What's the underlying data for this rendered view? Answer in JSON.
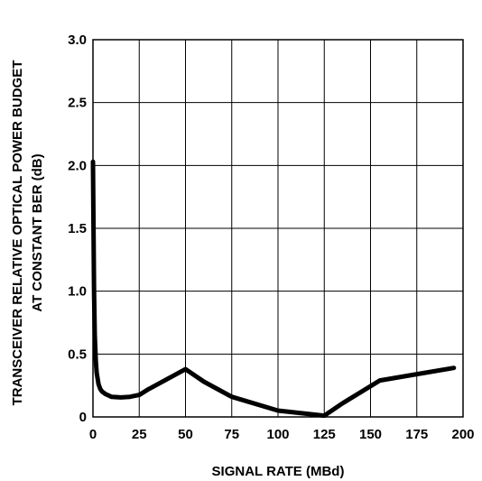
{
  "chart_data": {
    "type": "line",
    "title": "",
    "xlabel": "SIGNAL RATE (MBd)",
    "ylabel_lines": [
      "TRANSCEIVER RELATIVE OPTICAL POWER BUDGET",
      "AT CONSTANT BER (dB)"
    ],
    "xlim": [
      0,
      200
    ],
    "ylim": [
      0,
      3.0
    ],
    "xticks": [
      0,
      25,
      50,
      75,
      100,
      125,
      150,
      175,
      200
    ],
    "xtick_labels": [
      "0",
      "25",
      "50",
      "75",
      "100",
      "125",
      "150",
      "175",
      "200"
    ],
    "yticks": [
      0,
      0.5,
      1.0,
      1.5,
      2.0,
      2.5,
      3.0
    ],
    "ytick_labels": [
      "0",
      "0.5",
      "1.0",
      "1.5",
      "2.0",
      "2.5",
      "3.0"
    ],
    "grid": true,
    "series": [
      {
        "color": "#000000",
        "x": [
          0,
          0.3,
          0.6,
          1,
          1.5,
          2,
          3,
          4,
          5,
          7,
          10,
          15,
          20,
          25,
          30,
          40,
          50,
          60,
          75,
          100,
          125,
          135,
          155,
          175,
          195
        ],
        "y": [
          2.03,
          1.5,
          1.0,
          0.65,
          0.45,
          0.35,
          0.26,
          0.22,
          0.2,
          0.18,
          0.16,
          0.155,
          0.16,
          0.175,
          0.22,
          0.3,
          0.38,
          0.28,
          0.16,
          0.05,
          0.01,
          0.11,
          0.29,
          0.34,
          0.39
        ]
      }
    ]
  }
}
